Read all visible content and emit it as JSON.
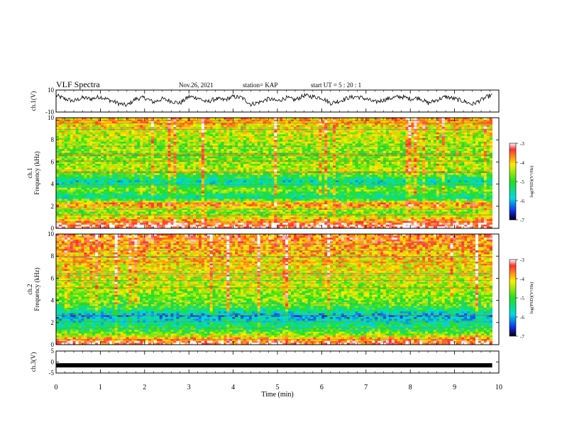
{
  "header": {
    "title": "VLF Spectra",
    "date": "Nov.26, 2021",
    "station": "station= KAP",
    "start": "start  UT =   5 : 20 : 1"
  },
  "chart_data": [
    {
      "type": "line",
      "panel": "ch1-waveform",
      "ylabel": "ch.1(V)",
      "ylim": [
        -10,
        10
      ],
      "yticks": [
        "10",
        "-10"
      ],
      "color": "#000000",
      "description_of_shape": "noisy waveform around +3 V with excursions to ~-4 V",
      "x": [
        0,
        0.2,
        0.4,
        0.6,
        0.8,
        1.0,
        1.2,
        1.4,
        1.6,
        1.8,
        2.0,
        2.2,
        2.4,
        2.6,
        2.8,
        3.0,
        3.2,
        3.4,
        3.6,
        3.8,
        4.0,
        4.2,
        4.4,
        4.6,
        4.8,
        5.0,
        5.2,
        5.4,
        5.6,
        5.8,
        6.0,
        6.2,
        6.4,
        6.6,
        6.8,
        7.0,
        7.2,
        7.4,
        7.6,
        7.8,
        8.0,
        8.2,
        8.4,
        8.6,
        8.8,
        9.0,
        9.2,
        9.4,
        9.6,
        9.8
      ],
      "y": [
        5,
        2,
        0,
        3,
        2,
        4,
        1,
        -2,
        -4,
        2,
        3,
        -1,
        2,
        0,
        -2,
        4,
        3,
        -1,
        2,
        1,
        4,
        3,
        -3,
        -1,
        2,
        0,
        3,
        1,
        5,
        4,
        3,
        -2,
        0,
        3,
        4,
        2,
        -1,
        1,
        3,
        4,
        2,
        3,
        -2,
        1,
        4,
        2,
        0,
        -3,
        1,
        5
      ]
    },
    {
      "type": "heatmap",
      "panel": "ch1-spectrogram",
      "ylabel": "ch.1\nFrequency (kHz)",
      "ylim": [
        0,
        10
      ],
      "yticks": [
        "10",
        "8",
        "6",
        "4",
        "2",
        "0"
      ],
      "colorbar": {
        "label": "log(PSD)(V²/Hz)",
        "range": [
          -7,
          -3
        ],
        "ticks": [
          "-3",
          "-4",
          "-5",
          "-6",
          "-7"
        ]
      },
      "bands_khz": [
        {
          "f": 0.3,
          "level": -3.2
        },
        {
          "f": 1.4,
          "level": -4.8
        },
        {
          "f": 2.2,
          "level": -3.6
        },
        {
          "f": 2.8,
          "level": -5.6
        },
        {
          "f": 3.5,
          "level": -4.6
        },
        {
          "f": 4.2,
          "level": -5.7
        },
        {
          "f": 5.2,
          "level": -4.4
        },
        {
          "f": 6.5,
          "level": -4.7
        },
        {
          "f": 8.5,
          "level": -4.4
        },
        {
          "f": 9.7,
          "level": -3.9
        }
      ]
    },
    {
      "type": "heatmap",
      "panel": "ch2-spectrogram",
      "ylabel": "ch.2\nFrequency (kHz)",
      "ylim": [
        0,
        10
      ],
      "yticks": [
        "10",
        "8",
        "6",
        "4",
        "2",
        "0"
      ],
      "colorbar": {
        "label": "log(PSD)(V²/Hz)",
        "range": [
          -7,
          -3
        ],
        "ticks": [
          "-3",
          "-4",
          "-5",
          "-6",
          "-7"
        ]
      },
      "bands_khz": [
        {
          "f": 0.2,
          "level": -3.3
        },
        {
          "f": 1.2,
          "level": -5.0
        },
        {
          "f": 2.6,
          "level": -6.0
        },
        {
          "f": 3.6,
          "level": -4.8
        },
        {
          "f": 5.0,
          "level": -4.5
        },
        {
          "f": 6.5,
          "level": -4.2
        },
        {
          "f": 8.0,
          "level": -4.0
        },
        {
          "f": 9.6,
          "level": -3.6
        }
      ]
    },
    {
      "type": "line",
      "panel": "ch3-trace",
      "ylabel": "ch.3(V)",
      "ylim": [
        -5,
        5
      ],
      "yticks": [
        "5",
        "0",
        "-5"
      ],
      "y_constant": -1.5,
      "color": "#000000"
    }
  ],
  "xaxis": {
    "label": "Time  (min)",
    "ticks": [
      "0",
      "1",
      "2",
      "3",
      "4",
      "5",
      "6",
      "7",
      "8",
      "9",
      "10"
    ],
    "range": [
      0,
      10
    ],
    "data_end": 9.85
  }
}
